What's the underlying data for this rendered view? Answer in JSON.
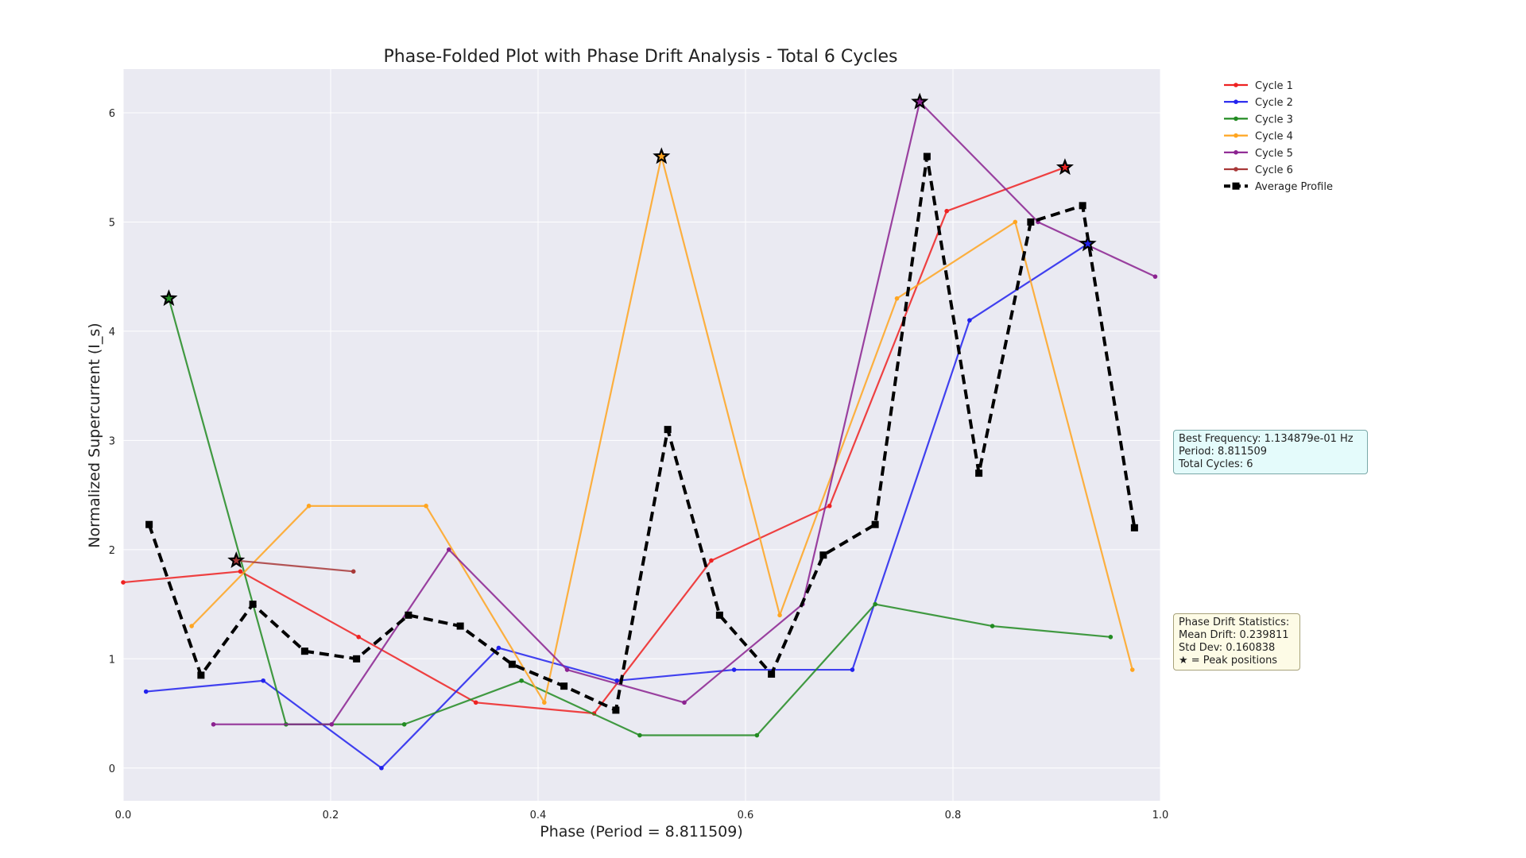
{
  "chart_data": {
    "type": "line",
    "title": "Phase-Folded Plot with Phase Drift Analysis - Total 6 Cycles",
    "xlabel": "Phase (Period = 8.811509)",
    "ylabel": "Normalized Supercurrent (I_s)",
    "xlim": [
      0.0,
      1.0
    ],
    "ylim": [
      -0.3,
      6.4
    ],
    "xticks": [
      "0.0",
      "0.2",
      "0.4",
      "0.6",
      "0.8",
      "1.0"
    ],
    "yticks": [
      "0",
      "1",
      "2",
      "3",
      "4",
      "5",
      "6"
    ],
    "xtick_values": [
      0,
      0.2,
      0.4,
      0.6,
      0.8,
      1.0
    ],
    "ytick_values": [
      0,
      1,
      2,
      3,
      4,
      5,
      6
    ],
    "grid": true,
    "legend_position": "top-right outside",
    "series": [
      {
        "name": "Cycle 1",
        "color": "#ee2222",
        "x": [
          0.0,
          0.113,
          0.227,
          0.34,
          0.454,
          0.567,
          0.681,
          0.794,
          0.908
        ],
        "y": [
          1.7,
          1.8,
          1.2,
          0.6,
          0.5,
          1.9,
          2.4,
          5.1,
          5.5
        ]
      },
      {
        "name": "Cycle 2",
        "color": "#2222ee",
        "x": [
          0.022,
          0.135,
          0.249,
          0.362,
          0.476,
          0.589,
          0.703,
          0.816,
          0.93
        ],
        "y": [
          0.7,
          0.8,
          0.0,
          1.1,
          0.8,
          0.9,
          0.9,
          4.1,
          4.8
        ]
      },
      {
        "name": "Cycle 3",
        "color": "#228b22",
        "x": [
          0.044,
          0.157,
          0.271,
          0.384,
          0.498,
          0.611,
          0.725,
          0.838,
          0.952
        ],
        "y": [
          4.3,
          0.4,
          0.4,
          0.8,
          0.3,
          0.3,
          1.5,
          1.3,
          1.2
        ]
      },
      {
        "name": "Cycle 4",
        "color": "#ffa520",
        "x": [
          0.066,
          0.179,
          0.292,
          0.406,
          0.519,
          0.633,
          0.746,
          0.86,
          0.973
        ],
        "y": [
          1.3,
          2.4,
          2.4,
          0.6,
          5.6,
          1.4,
          4.3,
          5.0,
          0.9
        ]
      },
      {
        "name": "Cycle 5",
        "color": "#8b2290",
        "x": [
          0.087,
          0.201,
          0.314,
          0.428,
          0.541,
          0.655,
          0.768,
          0.882,
          0.995
        ],
        "y": [
          0.4,
          0.4,
          2.0,
          0.9,
          0.6,
          1.5,
          6.1,
          5.0,
          4.5
        ]
      },
      {
        "name": "Cycle 6",
        "color": "#a83838",
        "x": [
          0.109,
          0.222
        ],
        "y": [
          1.9,
          1.8
        ]
      },
      {
        "name": "Average Profile",
        "color": "#000000",
        "style": "dashed",
        "marker": "square",
        "x": [
          0.025,
          0.075,
          0.125,
          0.175,
          0.225,
          0.275,
          0.325,
          0.375,
          0.425,
          0.475,
          0.525,
          0.575,
          0.625,
          0.675,
          0.725,
          0.775,
          0.825,
          0.875,
          0.925,
          0.975
        ],
        "y": [
          2.23,
          0.85,
          1.5,
          1.07,
          1.0,
          1.4,
          1.3,
          0.95,
          0.75,
          0.53,
          3.1,
          1.4,
          0.86,
          1.95,
          2.23,
          5.6,
          2.7,
          5.0,
          5.15,
          2.2
        ]
      }
    ],
    "peaks": [
      {
        "x": 0.044,
        "y": 4.3,
        "color": "#228b22"
      },
      {
        "x": 0.109,
        "y": 1.9,
        "color": "#a83838"
      },
      {
        "x": 0.519,
        "y": 5.6,
        "color": "#ffa520"
      },
      {
        "x": 0.768,
        "y": 6.1,
        "color": "#8b2290"
      },
      {
        "x": 0.908,
        "y": 5.5,
        "color": "#ee2222"
      },
      {
        "x": 0.93,
        "y": 4.8,
        "color": "#2222ee"
      }
    ]
  },
  "info_box": {
    "lines": [
      "Best Frequency: 1.134879e-01 Hz",
      "Period: 8.811509",
      "Total Cycles: 6"
    ]
  },
  "drift_box": {
    "lines": [
      "Phase Drift Statistics:",
      "Mean Drift: 0.239811",
      "Std Dev: 0.160838",
      "★ = Peak positions"
    ]
  },
  "colors": {
    "plot_background": "#eaeaf2",
    "grid": "#ffffff"
  }
}
